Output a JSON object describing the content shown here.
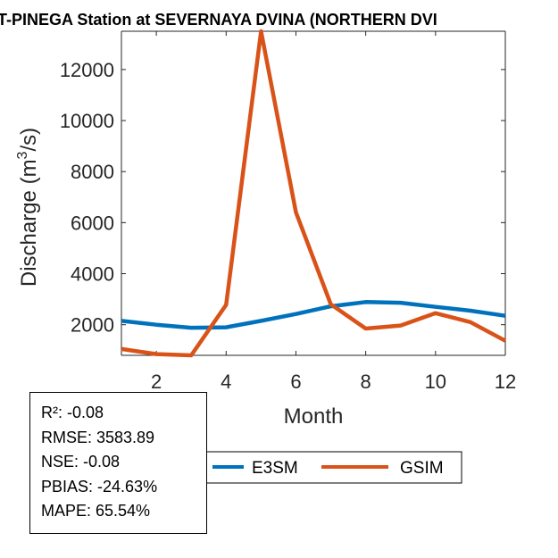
{
  "chart_data": {
    "type": "line",
    "title": "T-PINEGA  Station at  SEVERNAYA DVINA (NORTHERN DVI",
    "xlabel": "Month",
    "ylabel_main": "Discharge (m",
    "ylabel_sup": "3",
    "ylabel_tail": "/s)",
    "xlim": [
      1,
      12
    ],
    "ylim": [
      800,
      13500
    ],
    "x_ticks": [
      2,
      4,
      6,
      8,
      10,
      12
    ],
    "x_tick_labels": [
      "2",
      "4",
      "6",
      "8",
      "10",
      "12"
    ],
    "y_ticks": [
      2000,
      4000,
      6000,
      8000,
      10000,
      12000
    ],
    "y_tick_labels": [
      "2000",
      "4000",
      "6000",
      "8000",
      "10000",
      "12000"
    ],
    "x": [
      1,
      2,
      3,
      4,
      5,
      6,
      7,
      8,
      9,
      10,
      11,
      12
    ],
    "series": [
      {
        "name": "E3SM",
        "color": "#0072BD",
        "values": [
          2150,
          2000,
          1880,
          1900,
          2150,
          2420,
          2720,
          2890,
          2860,
          2700,
          2550,
          2350
        ]
      },
      {
        "name": "GSIM",
        "color": "#D95319",
        "values": [
          1050,
          850,
          750,
          2780,
          13500,
          6400,
          2800,
          1850,
          1970,
          2450,
          2100,
          1370
        ]
      }
    ],
    "legend_placement": "bottom-center"
  },
  "stats": {
    "r2": "R²: -0.08",
    "rmse": "RMSE: 3583.89",
    "nse": "NSE: -0.08",
    "pbias": "PBIAS: -24.63%",
    "mape": "MAPE: 65.54%"
  }
}
